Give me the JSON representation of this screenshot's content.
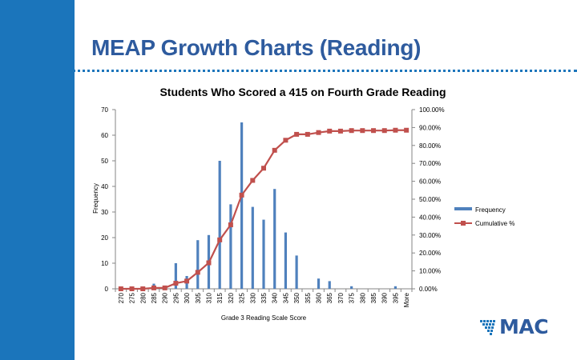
{
  "slide": {
    "title": "MEAP Growth Charts (Reading)",
    "accent_color": "#1b75bb",
    "title_color": "#2e5b9e"
  },
  "logo": {
    "text": "MAC",
    "icon": "mac-logo-icon"
  },
  "chart_data": {
    "type": "bar",
    "title": "Students Who Scored a 415 on Fourth Grade Reading",
    "xlabel": "Grade 3 Reading Scale Score",
    "ylabel": "Frequency",
    "y2label": "",
    "categories": [
      "270",
      "275",
      "280",
      "285",
      "290",
      "295",
      "300",
      "305",
      "310",
      "315",
      "320",
      "325",
      "330",
      "335",
      "340",
      "345",
      "350",
      "355",
      "360",
      "365",
      "370",
      "375",
      "380",
      "385",
      "390",
      "395",
      "More"
    ],
    "ylim": [
      0,
      70
    ],
    "yticks": [
      0,
      10,
      20,
      30,
      40,
      50,
      60,
      70
    ],
    "y2lim": [
      0,
      100
    ],
    "y2ticks": [
      "0.00%",
      "10.00%",
      "20.00%",
      "30.00%",
      "40.00%",
      "50.00%",
      "60.00%",
      "70.00%",
      "80.00%",
      "90.00%",
      "100.00%"
    ],
    "legend_position": "right",
    "grid": false,
    "series": [
      {
        "name": "Frequency",
        "type": "bar",
        "axis": "left",
        "color": "#4f81bd",
        "values": [
          0,
          0,
          0,
          2,
          0,
          10,
          5,
          19,
          21,
          50,
          33,
          65,
          32,
          27,
          39,
          22,
          13,
          0,
          4,
          3,
          0,
          1,
          0,
          0,
          0,
          1,
          0
        ]
      },
      {
        "name": "Cumulative %",
        "type": "line",
        "axis": "right",
        "color": "#c0504d",
        "values": [
          0.0,
          0.0,
          0.0,
          0.5,
          0.5,
          3.1,
          4.3,
          9.2,
          14.5,
          27.3,
          35.7,
          52.3,
          60.5,
          67.3,
          77.3,
          82.9,
          86.2,
          86.2,
          87.2,
          88.0,
          88.0,
          88.3,
          88.3,
          88.3,
          88.3,
          88.5,
          88.5
        ]
      }
    ]
  }
}
